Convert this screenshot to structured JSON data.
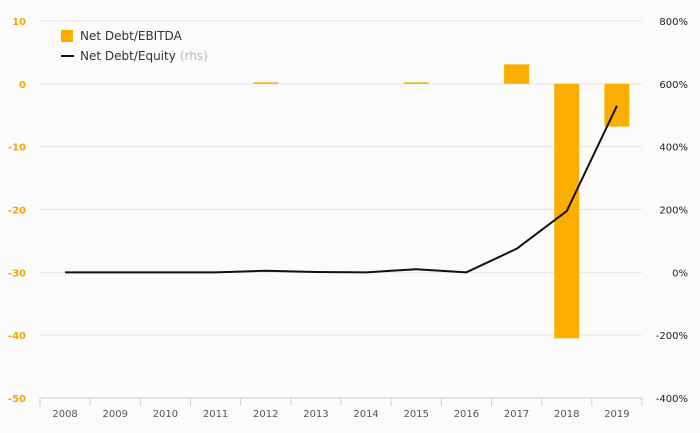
{
  "chart_data": {
    "type": "bar+line",
    "categories": [
      "2008",
      "2009",
      "2010",
      "2011",
      "2012",
      "2013",
      "2014",
      "2015",
      "2016",
      "2017",
      "2018",
      "2019"
    ],
    "series": [
      {
        "name": "Net Debt/EBITDA",
        "type": "bar",
        "axis": "left",
        "color": "#f9ae00",
        "values": [
          0,
          0,
          0,
          0,
          0.1,
          0,
          0,
          0.2,
          0,
          3.1,
          -40.5,
          -6.8
        ]
      },
      {
        "name": "Net Debt/Equity",
        "name_suffix": "(rhs)",
        "type": "line",
        "axis": "right",
        "color": "#111111",
        "values": [
          0,
          0,
          0,
          0,
          5,
          1,
          0,
          10,
          0,
          75,
          195,
          530
        ]
      }
    ],
    "y_left": {
      "ylim": [
        -50,
        10
      ],
      "ticks": [
        "10",
        "0",
        "-10",
        "-20",
        "-30",
        "-40",
        "-50"
      ],
      "tick_values": [
        10,
        0,
        -10,
        -20,
        -30,
        -40,
        -50
      ],
      "label_color": "#f0a800"
    },
    "y_right": {
      "ylim": [
        -400,
        800
      ],
      "ticks": [
        "800%",
        "600%",
        "400%",
        "200%",
        "0%",
        "-200%",
        "-400%"
      ],
      "tick_values": [
        800,
        600,
        400,
        200,
        0,
        -200,
        -400
      ]
    },
    "grid": true,
    "legend_placement": "top-left",
    "title": "",
    "xlabel": "",
    "ylabel": ""
  }
}
